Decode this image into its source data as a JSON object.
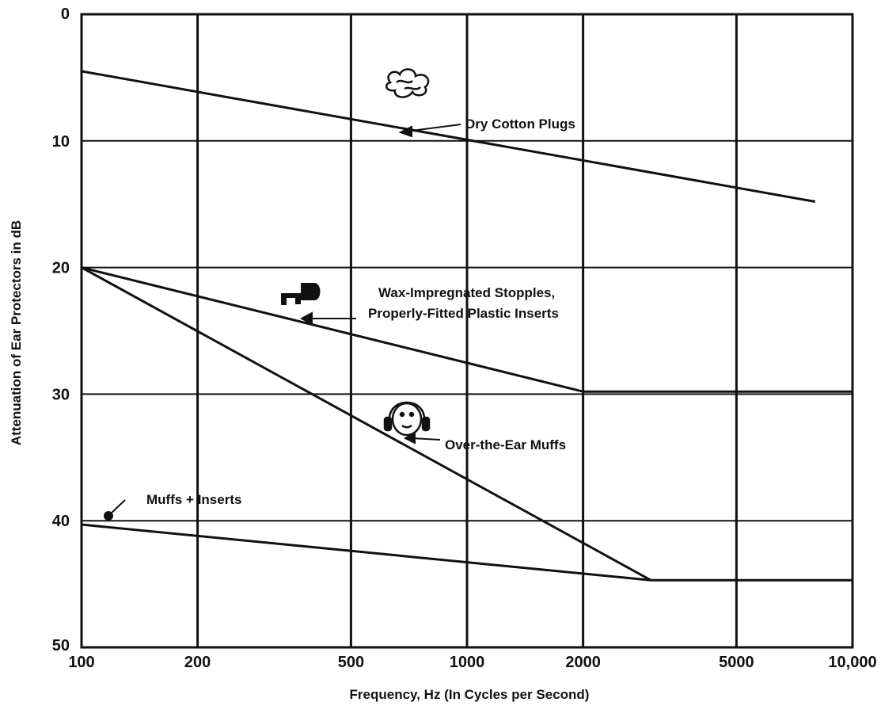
{
  "chart_data": {
    "type": "line",
    "xscale": "log",
    "xlim": [
      100,
      10000
    ],
    "ylim": [
      0,
      50
    ],
    "y_inverted": true,
    "grid": true,
    "xlabel": "Frequency, Hz (In Cycles per Second)",
    "ylabel": "Attenuation of Ear Protectors in dB",
    "xtick_labels": [
      "100",
      "200",
      "500",
      "1000",
      "2000",
      "5000",
      "10,000"
    ],
    "ytick_labels": [
      "0",
      "10",
      "20",
      "30",
      "40",
      "50"
    ],
    "x_ticks": [
      100,
      200,
      500,
      1000,
      2000,
      5000,
      10000
    ],
    "y_ticks": [
      0,
      10,
      20,
      30,
      40,
      50
    ],
    "series": [
      {
        "name": "Dry Cotton Plugs",
        "x": [
          100,
          8000
        ],
        "y": [
          4.5,
          14.8
        ]
      },
      {
        "name": "Wax-Impregnated Stopples, Properly-Fitted Plastic Inserts",
        "x": [
          100,
          2000,
          10000
        ],
        "y": [
          20,
          29.8,
          29.8
        ]
      },
      {
        "name": "Over-the-Ear Muffs",
        "x": [
          100,
          3000
        ],
        "y": [
          20,
          44.7
        ]
      },
      {
        "name": "Muffs + Inserts",
        "x": [
          100,
          3000,
          10000
        ],
        "y": [
          40.3,
          44.7,
          44.7
        ]
      }
    ],
    "annotations": {
      "cotton": {
        "line1": "Dry Cotton Plugs"
      },
      "wax": {
        "line1": "Wax-Impregnated Stopples,",
        "line2": "Properly-Fitted Plastic Inserts"
      },
      "muffs": {
        "line1": "Over-the-Ear Muffs"
      },
      "combo": {
        "line1": "Muffs + Inserts"
      }
    },
    "line_color": "#111111"
  }
}
